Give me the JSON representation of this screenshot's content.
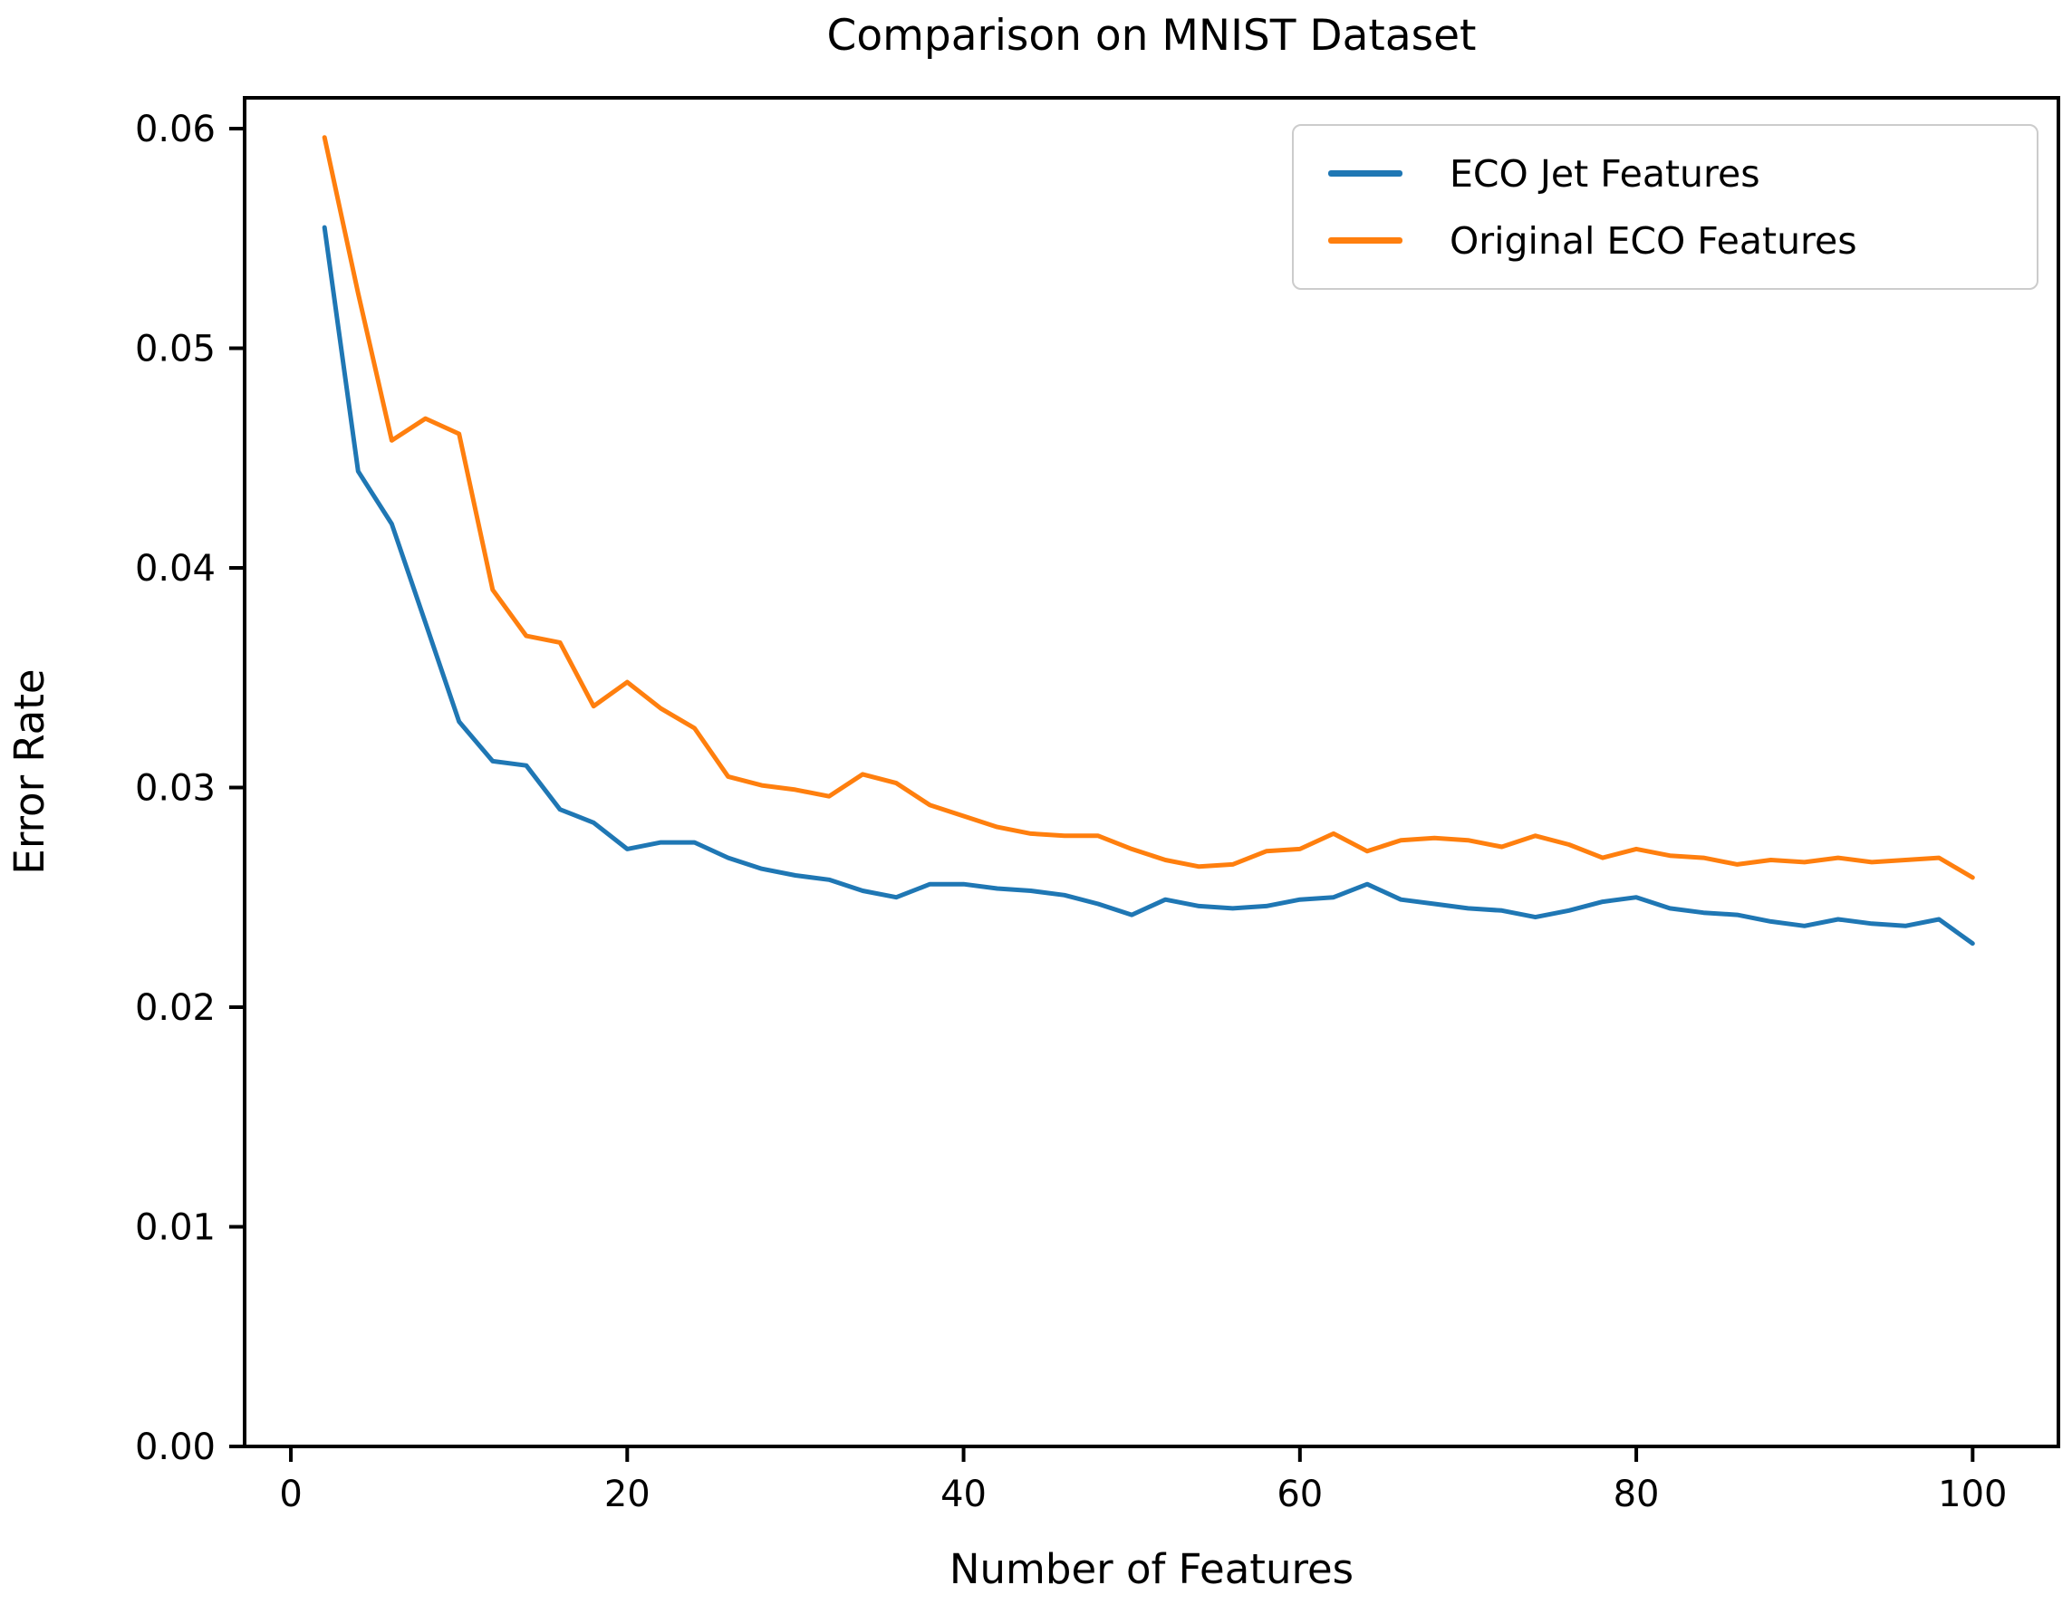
{
  "chart_data": {
    "type": "line",
    "title": "Comparison on MNIST Dataset",
    "xlabel": "Number of Features",
    "ylabel": "Error Rate",
    "xlim": [
      -2.75,
      105.1
    ],
    "ylim": [
      0,
      0.0614
    ],
    "grid": false,
    "legend_position": "upper right",
    "x_tick_values": [
      0,
      20,
      40,
      60,
      80,
      100
    ],
    "x_tick_labels": [
      "0",
      "20",
      "40",
      "60",
      "80",
      "100"
    ],
    "y_tick_values": [
      0.0,
      0.01,
      0.02,
      0.03,
      0.04,
      0.05,
      0.06
    ],
    "y_tick_labels": [
      "0.00",
      "0.01",
      "0.02",
      "0.03",
      "0.04",
      "0.05",
      "0.06"
    ],
    "x": [
      2,
      4,
      6,
      8,
      10,
      12,
      14,
      16,
      18,
      20,
      22,
      24,
      26,
      28,
      30,
      32,
      34,
      36,
      38,
      40,
      42,
      44,
      46,
      48,
      50,
      52,
      54,
      56,
      58,
      60,
      62,
      64,
      66,
      68,
      70,
      72,
      74,
      76,
      78,
      80,
      82,
      84,
      86,
      88,
      90,
      92,
      94,
      96,
      98,
      100
    ],
    "series": [
      {
        "name": "ECO Jet Features",
        "color": "#1f77b4",
        "values": [
          0.0555,
          0.0444,
          0.042,
          0.0375,
          0.033,
          0.0312,
          0.031,
          0.029,
          0.0284,
          0.0272,
          0.0275,
          0.0275,
          0.0268,
          0.0263,
          0.026,
          0.0258,
          0.0253,
          0.025,
          0.0256,
          0.0256,
          0.0254,
          0.0253,
          0.0251,
          0.0247,
          0.0242,
          0.0249,
          0.0246,
          0.0245,
          0.0246,
          0.0249,
          0.025,
          0.0256,
          0.0249,
          0.0247,
          0.0245,
          0.0244,
          0.0241,
          0.0244,
          0.0248,
          0.025,
          0.0245,
          0.0243,
          0.0242,
          0.0239,
          0.0237,
          0.024,
          0.0238,
          0.0237,
          0.024,
          0.0229
        ]
      },
      {
        "name": "Original ECO Features",
        "color": "#ff7f0e",
        "values": [
          0.0596,
          0.0525,
          0.0458,
          0.0468,
          0.0461,
          0.039,
          0.0369,
          0.0366,
          0.0337,
          0.0348,
          0.0336,
          0.0327,
          0.0305,
          0.0301,
          0.0299,
          0.0296,
          0.0306,
          0.0302,
          0.0292,
          0.0287,
          0.0282,
          0.0279,
          0.0278,
          0.0278,
          0.0272,
          0.0267,
          0.0264,
          0.0265,
          0.0271,
          0.0272,
          0.0279,
          0.0271,
          0.0276,
          0.0277,
          0.0276,
          0.0273,
          0.0278,
          0.0274,
          0.0268,
          0.0272,
          0.0269,
          0.0268,
          0.0265,
          0.0267,
          0.0266,
          0.0268,
          0.0266,
          0.0267,
          0.0268,
          0.0259
        ]
      }
    ],
    "colors": {
      "axis": "#000000",
      "text": "#000000",
      "legend_border": "#cccccc",
      "background": "#ffffff"
    }
  }
}
